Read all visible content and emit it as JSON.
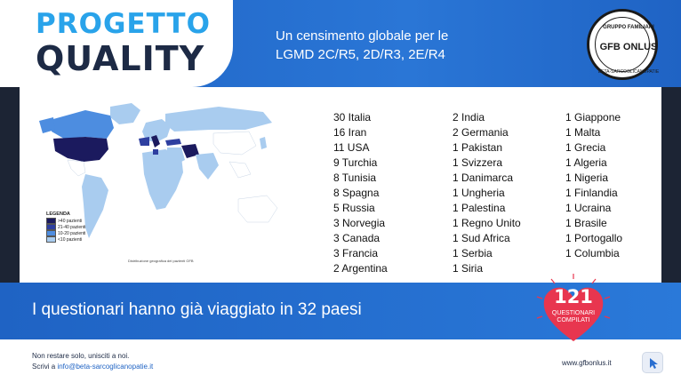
{
  "header": {
    "title_line1": "PROGETTO",
    "title_line2": "QUALITY",
    "subtitle_line1": "Un censimento globale per le",
    "subtitle_line2": "LGMD 2C/R5,  2D/R3,  2E/R4",
    "logo_top": "GRUPPO FAMILIARI",
    "logo_main": "GFB ONLUS",
    "logo_bottom": "BETA-SARCOGLICANOPATIE"
  },
  "map": {
    "legend_title": "LEGENDA",
    "legend_items": [
      {
        "label": ">40 pazienti",
        "color": "#1b1a5e"
      },
      {
        "label": "21-40 pazienti",
        "color": "#2e3fa0"
      },
      {
        "label": "10-20 pazienti",
        "color": "#4d8de0"
      },
      {
        "label": "<10 pazienti",
        "color": "#a9ccef"
      }
    ],
    "caption": "Distribuzione geografica dei pazienti GFB"
  },
  "countries": {
    "col1": [
      "30  Italia",
      "16  Iran",
      "11  USA",
      " 9  Turchia",
      " 8  Tunisia",
      " 8  Spagna",
      " 5  Russia",
      " 3  Norvegia",
      " 3  Canada",
      " 3  Francia",
      " 2 Argentina"
    ],
    "col2": [
      "2 India",
      "2 Germania",
      "1 Pakistan",
      "1 Svizzera",
      "1 Danimarca",
      "1 Ungheria",
      "1 Palestina",
      "1 Regno Unito",
      "1 Sud Africa",
      "1 Serbia",
      "1 Siria"
    ],
    "col3": [
      "1 Giappone",
      "1 Malta",
      "1 Grecia",
      "1 Algeria",
      "1 Nigeria",
      "1 Finlandia",
      "1 Ucraina",
      "1 Brasile",
      "1 Portogallo",
      "1 Columbia"
    ]
  },
  "banner": {
    "text": "I questionari hanno già viaggiato in 32 paesi",
    "heart_number": "121",
    "heart_label_1": "QUESTIONARI",
    "heart_label_2": "COMPILATI",
    "heart_color": "#e8364f"
  },
  "footer": {
    "line1": "Non restare solo, unisciti a noi.",
    "line2_prefix": "Scrivi a ",
    "email": "info@beta-sarcoglicanopatie.it",
    "website": "www.gfbonlus.it",
    "cursor_icon": "cursor-icon"
  }
}
